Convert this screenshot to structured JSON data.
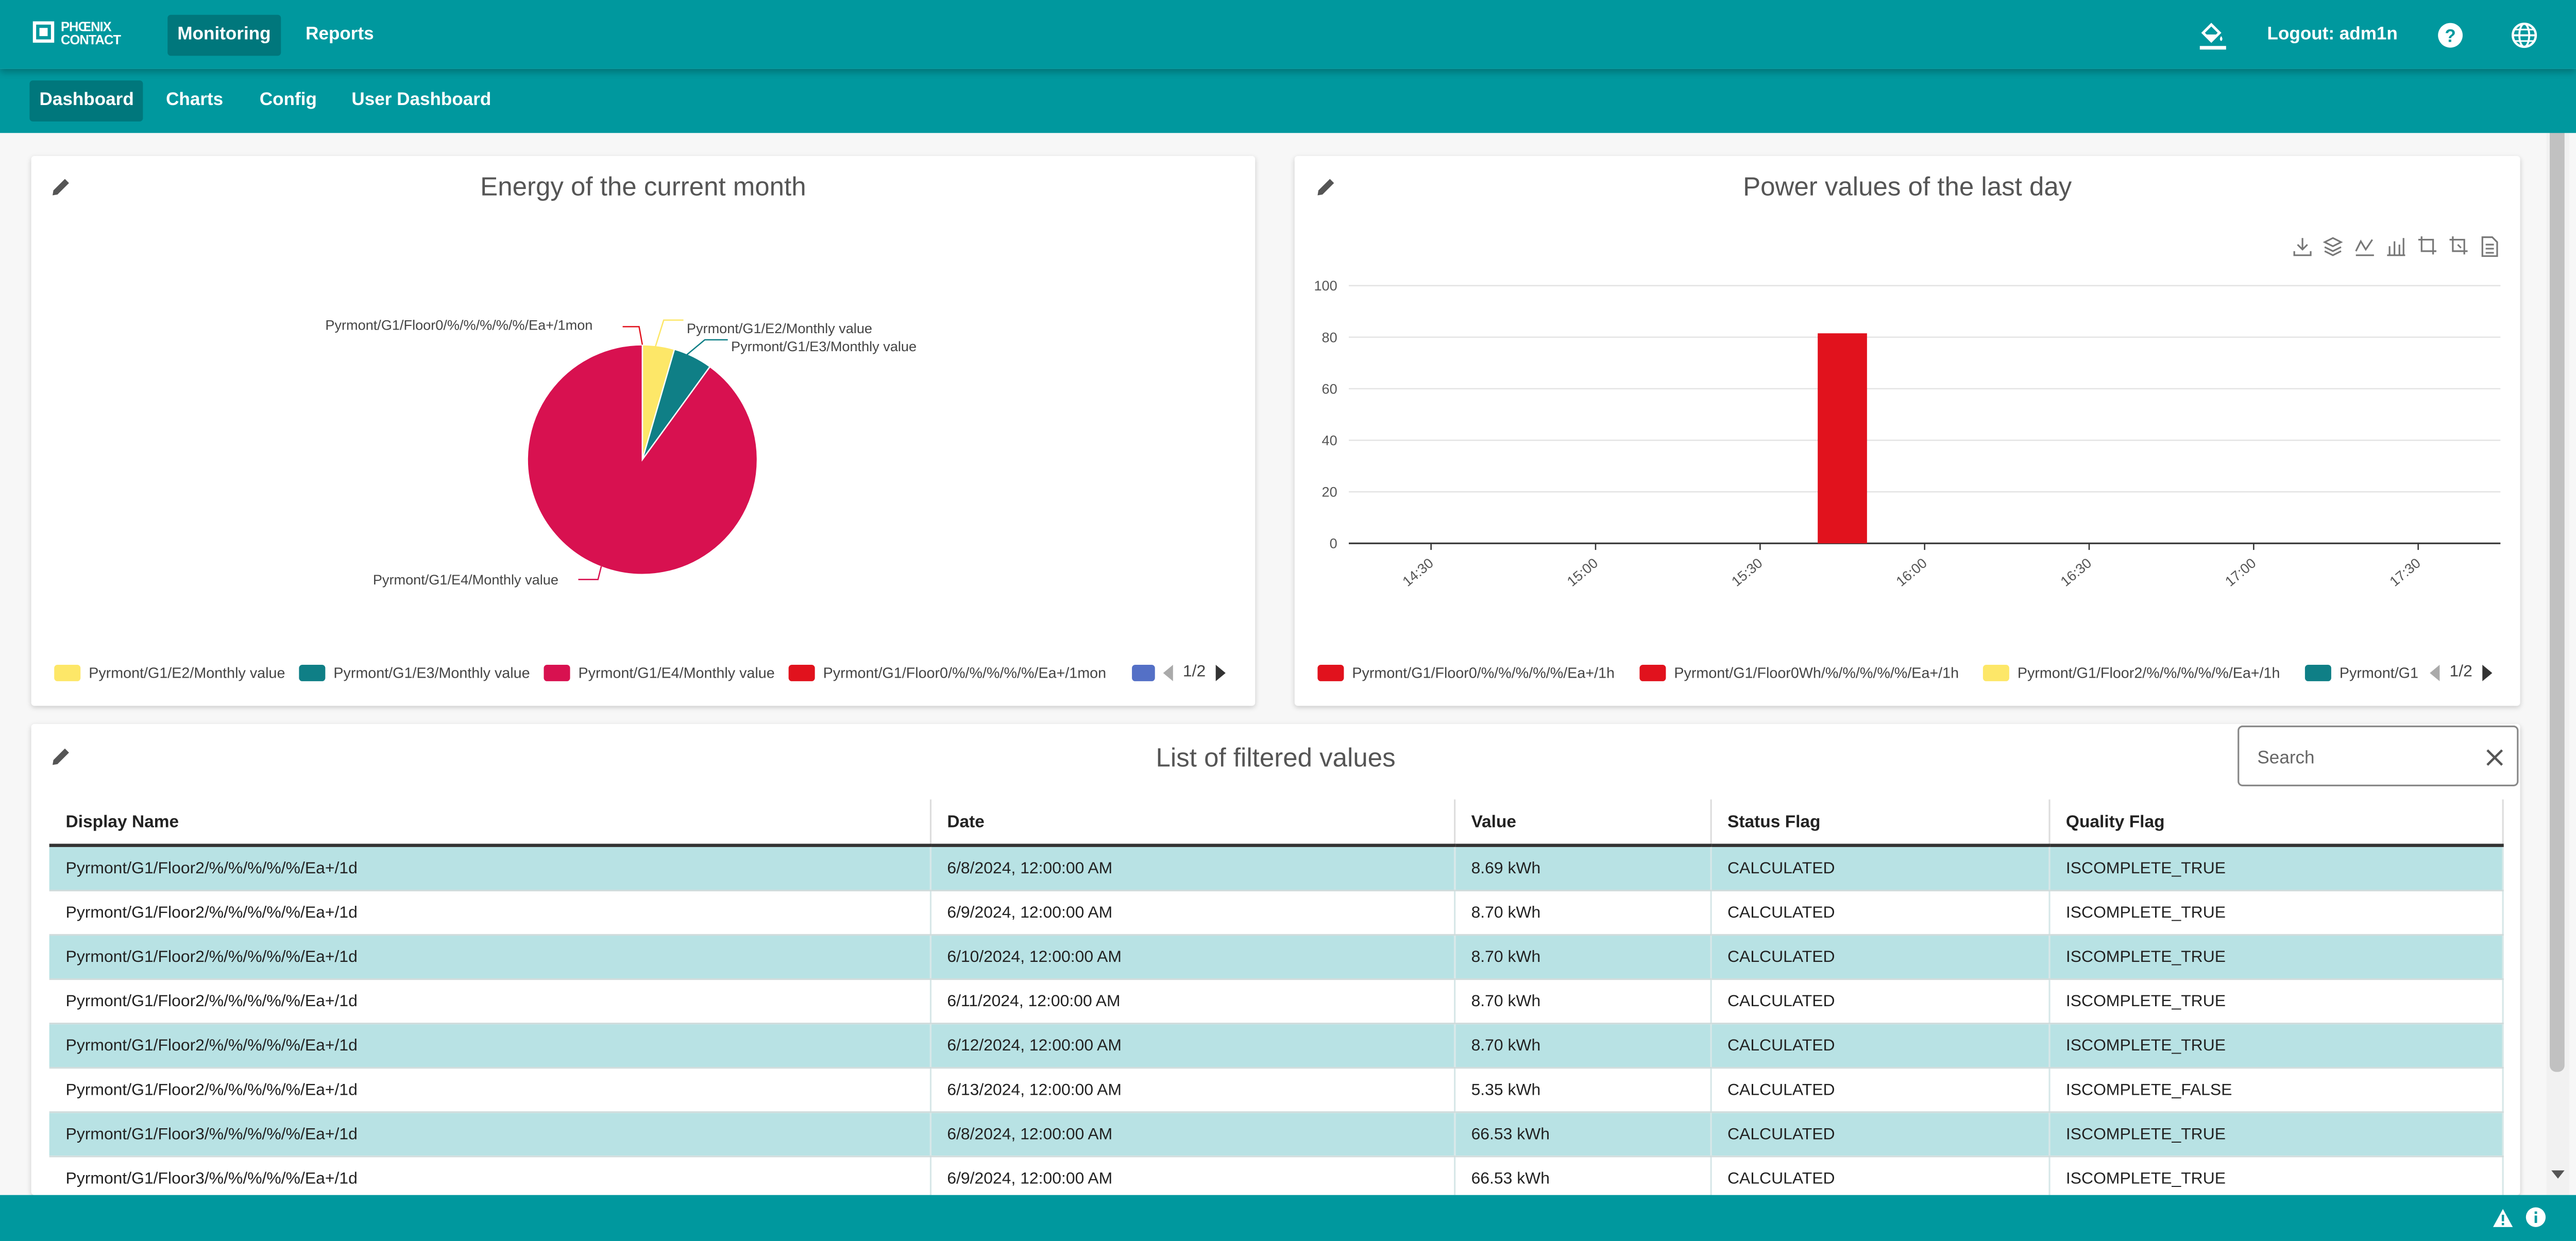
{
  "brand": {
    "line1": "PHŒNIX",
    "line2": "CONTACT"
  },
  "top_nav": [
    {
      "label": "Monitoring",
      "active": true
    },
    {
      "label": "Reports",
      "active": false
    }
  ],
  "header_right": {
    "logout_label": "Logout: adm1n",
    "icons": [
      "paint-bucket-icon",
      "help-icon",
      "globe-icon"
    ]
  },
  "sub_nav": [
    {
      "label": "Dashboard",
      "active": true
    },
    {
      "label": "Charts",
      "active": false
    },
    {
      "label": "Config",
      "active": false
    },
    {
      "label": "User Dashboard",
      "active": false
    }
  ],
  "pie_card": {
    "title": "Energy of the current month",
    "legend": [
      {
        "name": "Pyrmont/G1/E2/Monthly value",
        "color": "#fde768"
      },
      {
        "name": "Pyrmont/G1/E3/Monthly value",
        "color": "#0f7f86"
      },
      {
        "name": "Pyrmont/G1/E4/Monthly value",
        "color": "#d81150"
      },
      {
        "name": "Pyrmont/G1/Floor0/%/%/%/%/%/Ea+/1mon",
        "color": "#e1121d"
      },
      {
        "name": "",
        "color": "#5470c6"
      }
    ],
    "pager": "1/2"
  },
  "bar_card": {
    "title": "Power values of the last day",
    "toolbox_icons": [
      "download-icon",
      "stack-icon",
      "line-chart-icon",
      "bar-chart-icon",
      "crop-icon",
      "crop-reset-icon",
      "data-view-icon"
    ],
    "legend": [
      {
        "name": "Pyrmont/G1/Floor0/%/%/%/%/%/Ea+/1h",
        "color": "#e1121d"
      },
      {
        "name": "Pyrmont/G1/Floor0Wh/%/%/%/%/%/Ea+/1h",
        "color": "#e1121d"
      },
      {
        "name": "Pyrmont/G1/Floor2/%/%/%/%/%/Ea+/1h",
        "color": "#fde768"
      },
      {
        "name": "Pyrmont/G1",
        "color": "#0f7f86"
      }
    ],
    "pager": "1/2"
  },
  "chart_data": [
    {
      "type": "pie",
      "title": "Energy of the current month",
      "slices": [
        {
          "label": "Pyrmont/G1/E2/Monthly value",
          "value": 4.5,
          "color": "#fde768"
        },
        {
          "label": "Pyrmont/G1/E3/Monthly value",
          "value": 5.5,
          "color": "#0f7f86"
        },
        {
          "label": "Pyrmont/G1/E4/Monthly value",
          "value": 90,
          "color": "#d81150"
        },
        {
          "label": "Pyrmont/G1/Floor0/%/%/%/%/%/Ea+/1mon",
          "value": 0,
          "color": "#e1121d"
        }
      ],
      "legend_position": "bottom"
    },
    {
      "type": "bar",
      "title": "Power values of the last day",
      "x_ticks": [
        "14:30",
        "15:00",
        "15:30",
        "16:00",
        "16:30",
        "17:00",
        "17:30"
      ],
      "y_ticks": [
        "0",
        "20",
        "40",
        "60",
        "80",
        "100"
      ],
      "ylim": [
        0,
        100
      ],
      "xlim": [
        "14:15",
        "17:45"
      ],
      "series": [
        {
          "name": "Pyrmont/G1/Floor0/%/%/%/%/%/Ea+/1h",
          "color": "#e1121d",
          "points": [
            {
              "x": "15:45",
              "y": 81.5
            }
          ]
        }
      ],
      "grid": true,
      "legend_position": "bottom"
    }
  ],
  "table_card": {
    "title": "List of filtered values",
    "search_placeholder": "Search",
    "columns": [
      "Display Name",
      "Date",
      "Value",
      "Status Flag",
      "Quality Flag"
    ],
    "rows": [
      [
        "Pyrmont/G1/Floor2/%/%/%/%/%/Ea+/1d",
        "6/8/2024, 12:00:00 AM",
        "8.69 kWh",
        "CALCULATED",
        "ISCOMPLETE_TRUE"
      ],
      [
        "Pyrmont/G1/Floor2/%/%/%/%/%/Ea+/1d",
        "6/9/2024, 12:00:00 AM",
        "8.70 kWh",
        "CALCULATED",
        "ISCOMPLETE_TRUE"
      ],
      [
        "Pyrmont/G1/Floor2/%/%/%/%/%/Ea+/1d",
        "6/10/2024, 12:00:00 AM",
        "8.70 kWh",
        "CALCULATED",
        "ISCOMPLETE_TRUE"
      ],
      [
        "Pyrmont/G1/Floor2/%/%/%/%/%/Ea+/1d",
        "6/11/2024, 12:00:00 AM",
        "8.70 kWh",
        "CALCULATED",
        "ISCOMPLETE_TRUE"
      ],
      [
        "Pyrmont/G1/Floor2/%/%/%/%/%/Ea+/1d",
        "6/12/2024, 12:00:00 AM",
        "8.70 kWh",
        "CALCULATED",
        "ISCOMPLETE_TRUE"
      ],
      [
        "Pyrmont/G1/Floor2/%/%/%/%/%/Ea+/1d",
        "6/13/2024, 12:00:00 AM",
        "5.35 kWh",
        "CALCULATED",
        "ISCOMPLETE_FALSE"
      ],
      [
        "Pyrmont/G1/Floor3/%/%/%/%/%/Ea+/1d",
        "6/8/2024, 12:00:00 AM",
        "66.53 kWh",
        "CALCULATED",
        "ISCOMPLETE_TRUE"
      ],
      [
        "Pyrmont/G1/Floor3/%/%/%/%/%/Ea+/1d",
        "6/9/2024, 12:00:00 AM",
        "66.53 kWh",
        "CALCULATED",
        "ISCOMPLETE_TRUE"
      ]
    ]
  },
  "footer_icons": [
    "warning-icon",
    "info-icon"
  ]
}
